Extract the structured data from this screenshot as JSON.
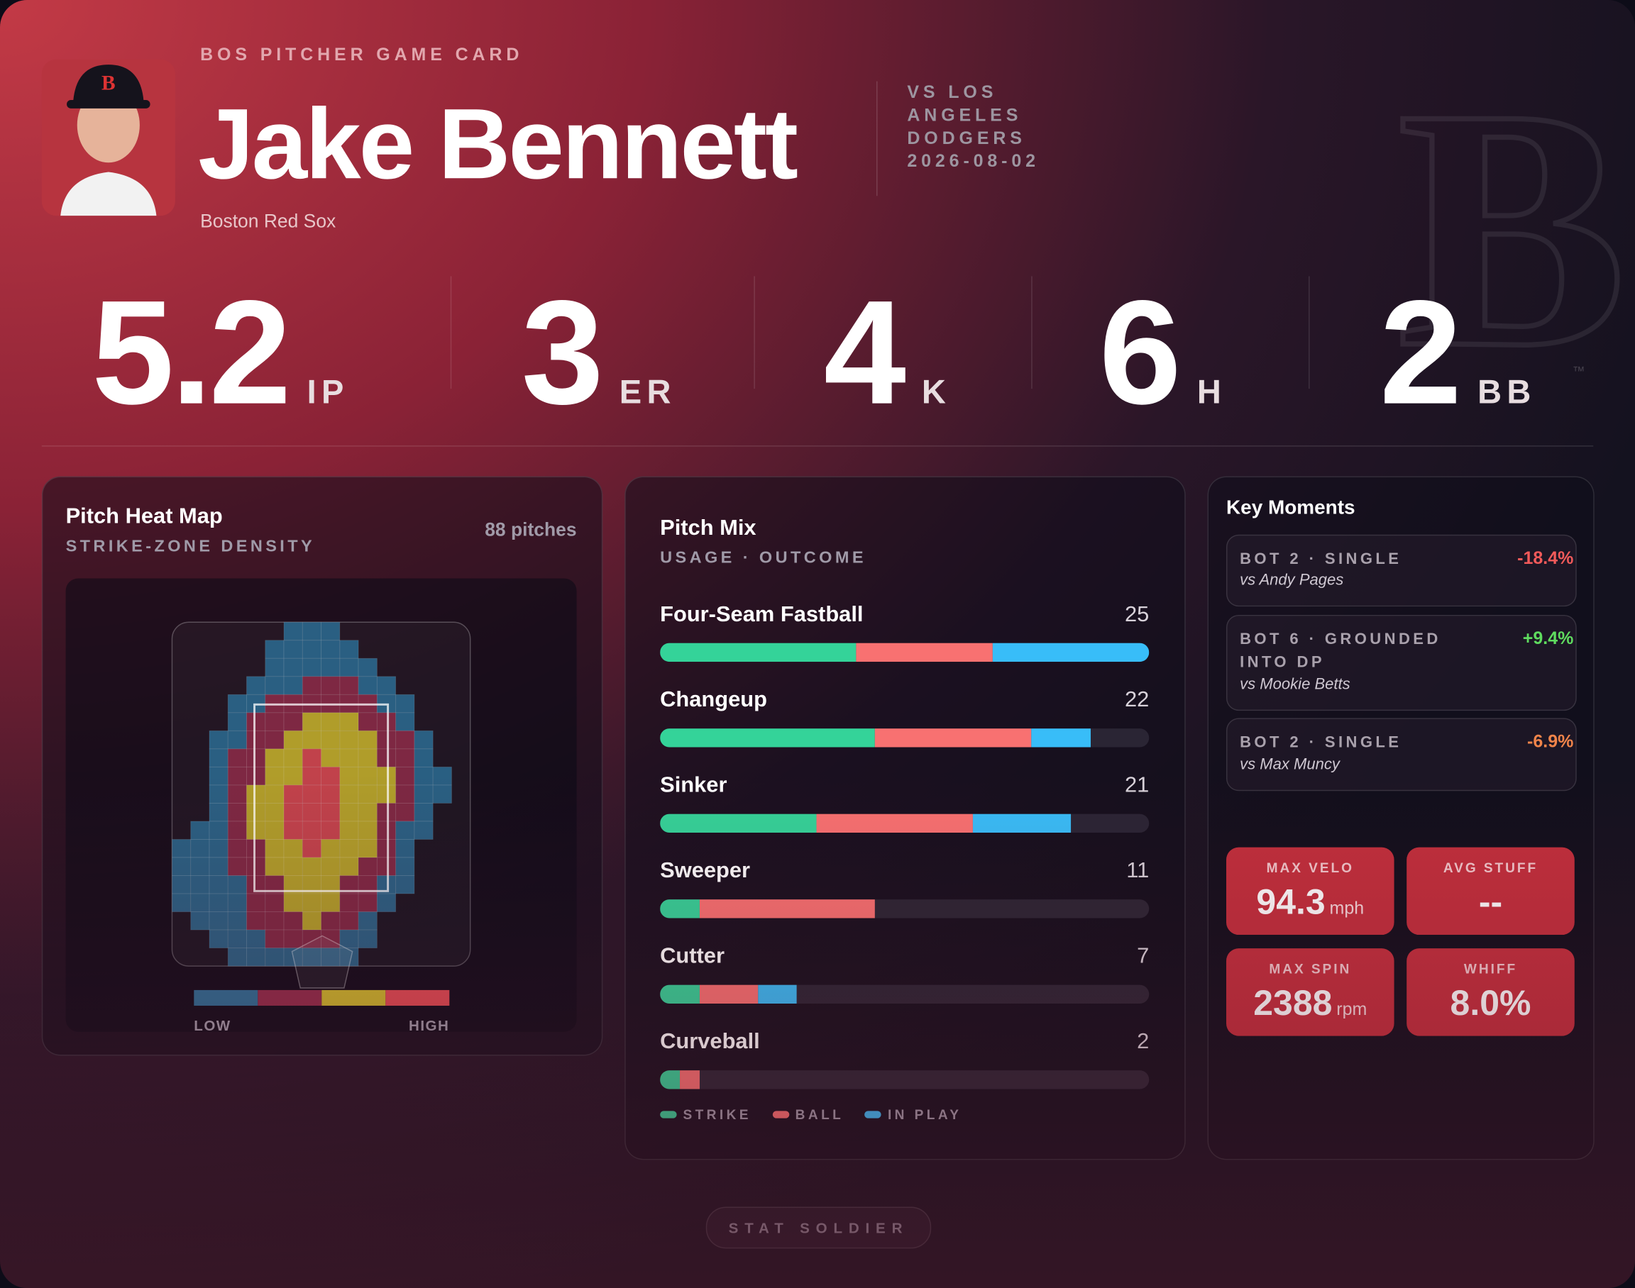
{
  "header": {
    "kicker": "BOS PITCHER GAME CARD",
    "name": "Jake Bennett",
    "team": "Boston Red Sox",
    "opponent": "VS LOS ANGELES DODGERS",
    "date": "2026-08-02",
    "logo_mark": "™"
  },
  "stats": [
    {
      "value": "5.2",
      "label": "IP"
    },
    {
      "value": "3",
      "label": "ER"
    },
    {
      "value": "4",
      "label": "K"
    },
    {
      "value": "6",
      "label": "H"
    },
    {
      "value": "2",
      "label": "BB"
    }
  ],
  "heatmap": {
    "title": "Pitch Heat Map",
    "subtitle": "STRIKE-ZONE DENSITY",
    "count": "88 pitches",
    "low": "LOW",
    "high": "HIGH",
    "colors": [
      "#2c6c93",
      "#8e2c49",
      "#c9b52c",
      "#dd4a52"
    ],
    "grid": [
      [
        0,
        0,
        0,
        0,
        0,
        0,
        1,
        1,
        1,
        0,
        0,
        0,
        0,
        0,
        0,
        0
      ],
      [
        0,
        0,
        0,
        0,
        0,
        1,
        1,
        1,
        1,
        1,
        0,
        0,
        0,
        0,
        0,
        0
      ],
      [
        0,
        0,
        0,
        0,
        0,
        1,
        1,
        1,
        1,
        1,
        1,
        0,
        0,
        0,
        0,
        0
      ],
      [
        0,
        0,
        0,
        0,
        1,
        1,
        1,
        2,
        2,
        2,
        1,
        1,
        0,
        0,
        0,
        0
      ],
      [
        0,
        0,
        0,
        1,
        1,
        2,
        2,
        2,
        2,
        2,
        2,
        1,
        1,
        0,
        0,
        0
      ],
      [
        0,
        0,
        0,
        1,
        2,
        2,
        2,
        3,
        3,
        3,
        2,
        2,
        1,
        0,
        0,
        0
      ],
      [
        0,
        0,
        1,
        1,
        2,
        2,
        3,
        3,
        3,
        3,
        3,
        2,
        2,
        1,
        0,
        0
      ],
      [
        0,
        0,
        1,
        2,
        2,
        3,
        3,
        4,
        3,
        3,
        3,
        2,
        2,
        1,
        0,
        0
      ],
      [
        0,
        0,
        1,
        2,
        2,
        3,
        3,
        4,
        4,
        3,
        3,
        3,
        2,
        1,
        1,
        0
      ],
      [
        0,
        0,
        1,
        2,
        3,
        3,
        4,
        4,
        4,
        3,
        3,
        3,
        2,
        1,
        1,
        0
      ],
      [
        0,
        0,
        1,
        2,
        3,
        3,
        4,
        4,
        4,
        3,
        3,
        2,
        2,
        1,
        0,
        0
      ],
      [
        0,
        1,
        1,
        2,
        3,
        3,
        4,
        4,
        4,
        3,
        3,
        2,
        1,
        1,
        0,
        0
      ],
      [
        1,
        1,
        1,
        2,
        2,
        3,
        3,
        4,
        3,
        3,
        3,
        2,
        1,
        0,
        0,
        0
      ],
      [
        1,
        1,
        1,
        2,
        2,
        3,
        3,
        3,
        3,
        3,
        2,
        2,
        1,
        0,
        0,
        0
      ],
      [
        1,
        1,
        1,
        1,
        2,
        2,
        3,
        3,
        3,
        2,
        2,
        1,
        1,
        0,
        0,
        0
      ],
      [
        1,
        1,
        1,
        1,
        2,
        2,
        3,
        3,
        3,
        2,
        2,
        1,
        0,
        0,
        0,
        0
      ],
      [
        0,
        1,
        1,
        1,
        2,
        2,
        2,
        3,
        2,
        2,
        1,
        0,
        0,
        0,
        0,
        0
      ],
      [
        0,
        0,
        1,
        1,
        1,
        2,
        2,
        2,
        2,
        1,
        1,
        0,
        0,
        0,
        0,
        0
      ],
      [
        0,
        0,
        0,
        1,
        1,
        1,
        1,
        1,
        1,
        1,
        0,
        0,
        0,
        0,
        0,
        0
      ]
    ]
  },
  "pitch_mix": {
    "title": "Pitch Mix",
    "subtitle": "USAGE · OUTCOME",
    "legend": [
      "STRIKE",
      "BALL",
      "IN PLAY"
    ],
    "colors": [
      "#34d399",
      "#f87171",
      "#38bdf8"
    ],
    "pitches": [
      {
        "name": "Four-Seam Fastball",
        "count": 25,
        "strike": 10,
        "ball": 7,
        "in_play": 8
      },
      {
        "name": "Changeup",
        "count": 22,
        "strike": 11,
        "ball": 8,
        "in_play": 3
      },
      {
        "name": "Sinker",
        "count": 21,
        "strike": 8,
        "ball": 8,
        "in_play": 5
      },
      {
        "name": "Sweeper",
        "count": 11,
        "strike": 2,
        "ball": 9,
        "in_play": 0
      },
      {
        "name": "Cutter",
        "count": 7,
        "strike": 2,
        "ball": 3,
        "in_play": 2
      },
      {
        "name": "Curveball",
        "count": 2,
        "strike": 1,
        "ball": 1,
        "in_play": 0
      }
    ]
  },
  "key_moments": {
    "title": "Key Moments",
    "items": [
      {
        "event": "BOT 2 · SINGLE",
        "batter": "vs Andy Pages",
        "delta": "-18.4%",
        "color": "#f25a5a"
      },
      {
        "event": "BOT 6 · GROUNDED INTO DP",
        "batter": "vs Mookie Betts",
        "delta": "+9.4%",
        "color": "#5fdc5f"
      },
      {
        "event": "BOT 2 · SINGLE",
        "batter": "vs Max Muncy",
        "delta": "-6.9%",
        "color": "#f0844a"
      }
    ]
  },
  "tiles": [
    {
      "label": "MAX VELO",
      "value": "94.3",
      "unit": "mph"
    },
    {
      "label": "AVG STUFF",
      "value": "--"
    },
    {
      "label": "MAX SPIN",
      "value": "2388",
      "unit": "rpm"
    },
    {
      "label": "WHIFF",
      "value": "8.0%"
    }
  ],
  "footer": "STAT SOLDIER"
}
